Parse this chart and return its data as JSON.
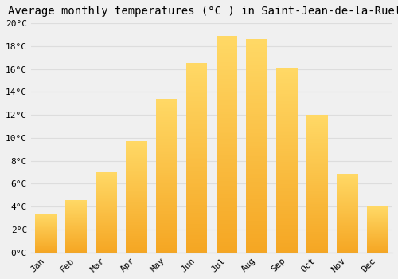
{
  "title": "Average monthly temperatures (°C ) in Saint-Jean-de-la-Ruelle",
  "months": [
    "Jan",
    "Feb",
    "Mar",
    "Apr",
    "May",
    "Jun",
    "Jul",
    "Aug",
    "Sep",
    "Oct",
    "Nov",
    "Dec"
  ],
  "temperatures": [
    3.4,
    4.6,
    7.0,
    9.7,
    13.4,
    16.5,
    18.9,
    18.6,
    16.1,
    12.0,
    6.9,
    4.0
  ],
  "bar_color_bottom": "#F5A623",
  "bar_color_top": "#FFD966",
  "background_color": "#f0f0f0",
  "plot_bg_color": "#f0f0f0",
  "grid_color": "#dddddd",
  "title_fontsize": 10,
  "tick_fontsize": 8,
  "ylim": [
    0,
    20
  ],
  "ytick_step": 2,
  "bar_width": 0.7
}
